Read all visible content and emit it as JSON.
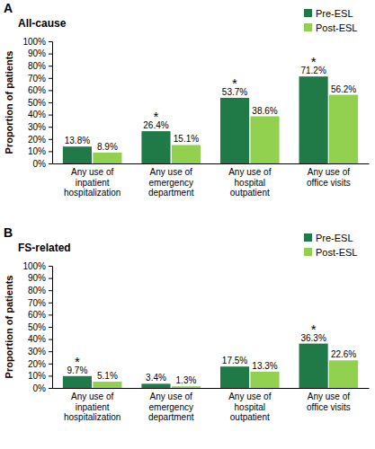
{
  "chart_data": [
    {
      "type": "bar",
      "title": "A",
      "subtitle": "All-cause",
      "y_label": "Proportion of patients",
      "categories": [
        "Any use of inpatient hospitalization",
        "Any use of emergency department",
        "Any use of hospital outpatient",
        "Any use of office visits"
      ],
      "series": [
        {
          "name": "Pre-ESL",
          "color": "#1f7a48",
          "values": [
            13.8,
            26.4,
            53.7,
            71.2
          ],
          "value_labels": [
            "13.8%",
            "26.4%",
            "53.7%",
            "71.2%"
          ]
        },
        {
          "name": "Post-ESL",
          "color": "#92d050",
          "values": [
            8.9,
            15.1,
            38.6,
            56.2
          ],
          "value_labels": [
            "8.9%",
            "15.1%",
            "38.6%",
            "56.2%"
          ]
        }
      ],
      "annotations": [
        {
          "text": "*",
          "category": 1
        },
        {
          "text": "*",
          "category": 2
        },
        {
          "text": "*",
          "category": 3
        }
      ],
      "ylim": [
        0,
        100
      ],
      "yticks": [
        {
          "value": 0,
          "label": "0%"
        },
        {
          "value": 10,
          "label": "10%"
        },
        {
          "value": 20,
          "label": "20%"
        },
        {
          "value": 30,
          "label": "30%"
        },
        {
          "value": 40,
          "label": "40%"
        },
        {
          "value": 50,
          "label": "50%"
        },
        {
          "value": 60,
          "label": "60%"
        },
        {
          "value": 70,
          "label": "70%"
        },
        {
          "value": 80,
          "label": "80%"
        },
        {
          "value": 90,
          "label": "90%"
        },
        {
          "value": 100,
          "label": "100%"
        }
      ],
      "grid": false,
      "legend": "top-right",
      "data_labels": true
    },
    {
      "type": "bar",
      "title": "B",
      "subtitle": "FS-related",
      "y_label": "Proportion of patients",
      "categories": [
        "Any use of inpatient hospitalization",
        "Any use of emergency department",
        "Any use of hospital outpatient",
        "Any use of office visits"
      ],
      "series": [
        {
          "name": "Pre-ESL",
          "color": "#1f7a48",
          "values": [
            9.7,
            3.4,
            17.5,
            36.3
          ],
          "value_labels": [
            "9.7%",
            "3.4%",
            "17.5%",
            "36.3%"
          ]
        },
        {
          "name": "Post-ESL",
          "color": "#92d050",
          "values": [
            5.1,
            1.3,
            13.3,
            22.6
          ],
          "value_labels": [
            "5.1%",
            "1.3%",
            "13.3%",
            "22.6%"
          ]
        }
      ],
      "annotations": [
        {
          "text": "*",
          "category": 0
        },
        {
          "text": "*",
          "category": 3
        }
      ],
      "ylim": [
        0,
        100
      ],
      "yticks": [
        {
          "value": 0,
          "label": "0%"
        },
        {
          "value": 10,
          "label": "10%"
        },
        {
          "value": 20,
          "label": "20%"
        },
        {
          "value": 30,
          "label": "30%"
        },
        {
          "value": 40,
          "label": "40%"
        },
        {
          "value": 50,
          "label": "50%"
        },
        {
          "value": 60,
          "label": "60%"
        },
        {
          "value": 70,
          "label": "70%"
        },
        {
          "value": 80,
          "label": "80%"
        },
        {
          "value": 90,
          "label": "90%"
        },
        {
          "value": 100,
          "label": "100%"
        }
      ],
      "grid": false,
      "legend": "top-right",
      "data_labels": true
    }
  ]
}
